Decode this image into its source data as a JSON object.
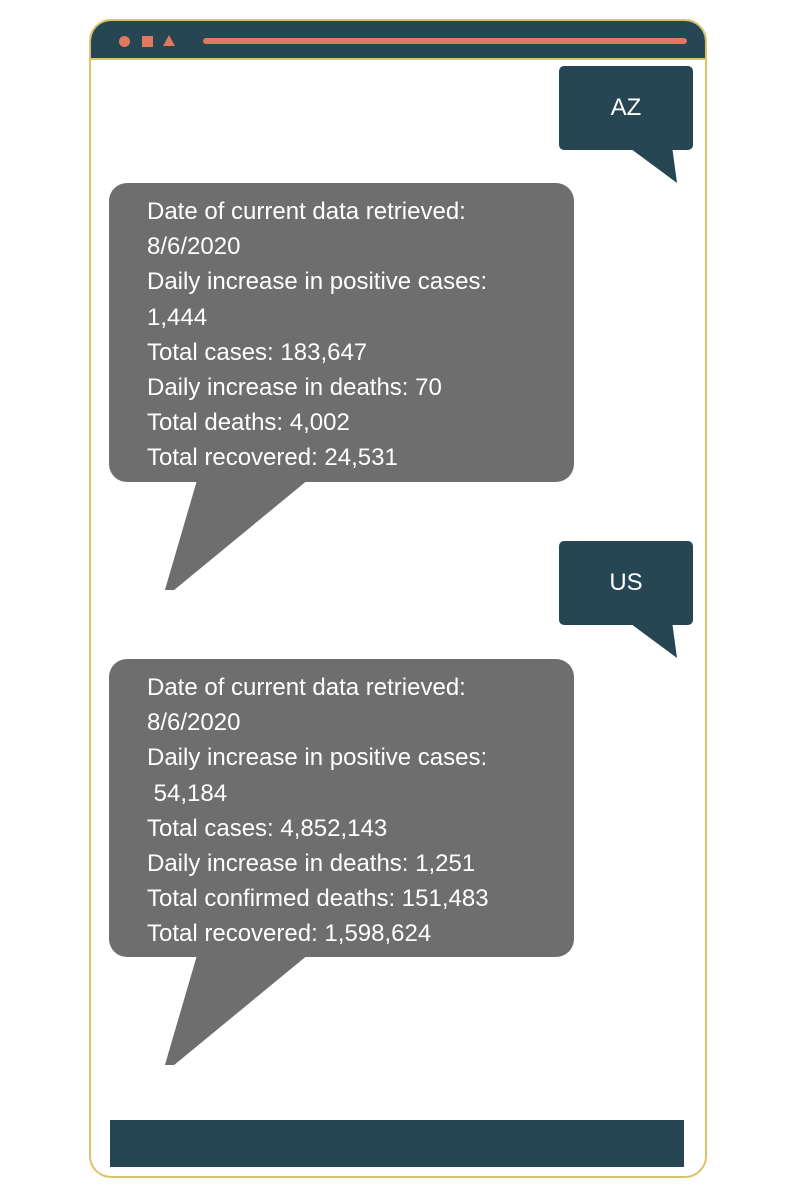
{
  "colors": {
    "primary_dark": "#264653",
    "accent": "#e07a5f",
    "frame_border": "#dcc36a",
    "incoming_bubble": "#6e6e6e"
  },
  "window_controls": [
    "circle-icon",
    "square-icon",
    "triangle-icon"
  ],
  "messages": [
    {
      "type": "outgoing",
      "text": "AZ"
    },
    {
      "type": "incoming",
      "lines": [
        "Date of current data retrieved:",
        "8/6/2020",
        "Daily increase in positive cases:",
        "1,444",
        "Total cases: 183,647",
        "Daily increase in deaths: 70",
        "Total deaths: 4,002",
        "Total recovered: 24,531"
      ]
    },
    {
      "type": "outgoing",
      "text": "US"
    },
    {
      "type": "incoming",
      "lines": [
        "Date of current data retrieved:",
        "8/6/2020",
        "Daily increase in positive cases:",
        " 54,184",
        "Total cases: 4,852,143",
        "Daily increase in deaths: 1,251",
        "Total confirmed deaths: 151,483",
        "Total recovered: 1,598,624"
      ]
    }
  ]
}
